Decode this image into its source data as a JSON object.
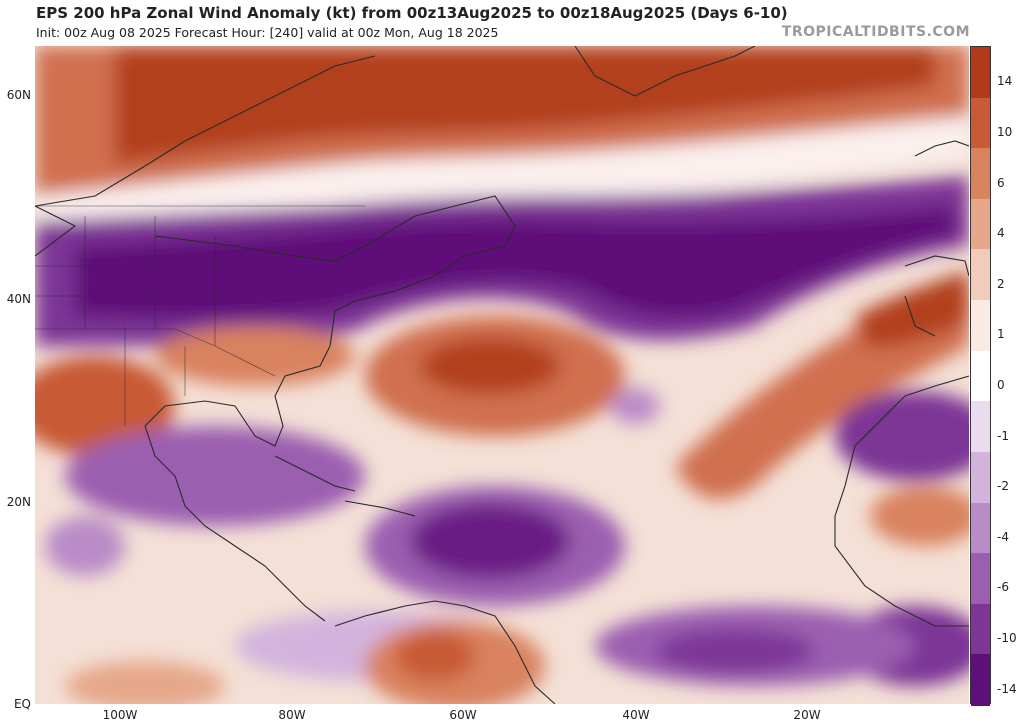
{
  "header": {
    "title": "EPS 200 hPa Zonal Wind Anomaly (kt) from 00z13Aug2025 to 00z18Aug2025 (Days 6-10)",
    "subtitle": "Init: 00z Aug 08 2025   Forecast Hour: [240]   valid at 00z Mon, Aug 18 2025",
    "brand": "TROPICALTIDBITS.COM"
  },
  "map": {
    "lat_labels": [
      "60N",
      "40N",
      "20N",
      "EQ"
    ],
    "lon_labels": [
      "100W",
      "80W",
      "60W",
      "40W",
      "20W"
    ],
    "land_color": "#3a3a3a"
  },
  "colorbar": {
    "labels": [
      "14",
      "10",
      "6",
      "4",
      "2",
      "1",
      "0",
      "-1",
      "-2",
      "-4",
      "-6",
      "-10",
      "-14"
    ],
    "colors": [
      "#b23a1a",
      "#c85a35",
      "#d9825e",
      "#e6a78a",
      "#f0ccb9",
      "#f9ebe3",
      "#ffffff",
      "#eadbef",
      "#d3b3dd",
      "#b98bc7",
      "#9b5eb0",
      "#7d3596",
      "#5f0f79"
    ]
  }
}
